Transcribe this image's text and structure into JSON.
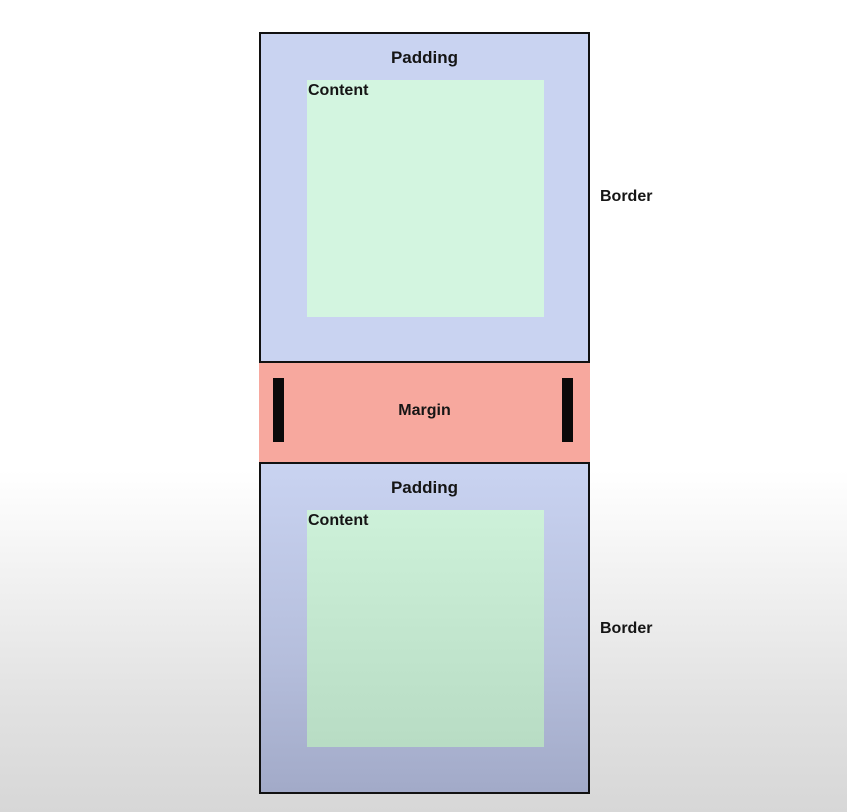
{
  "top_box": {
    "padding_label": "Padding",
    "content_label": "Content",
    "border_label": "Border"
  },
  "margin": {
    "label": "Margin"
  },
  "bottom_box": {
    "padding_label": "Padding",
    "content_label": "Content",
    "border_label": "Border"
  },
  "colors": {
    "padding": "#c9d3f1",
    "content": "#d3f5e0",
    "margin": "#f7a89e",
    "border": "#111111"
  }
}
